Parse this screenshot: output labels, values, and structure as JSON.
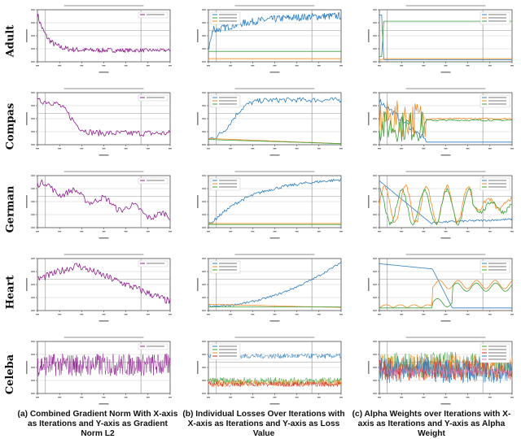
{
  "row_labels": [
    "Adult",
    "Compas",
    "German",
    "Heart",
    "Celeba"
  ],
  "captions": [
    "(a) Combined Gradient Norm With X-axis as Iterations and Y-axis as Gradient Norm L2",
    "(b) Individual Losses Over Iterations with X-axis as Iterations and Y-axis as Loss Value",
    "(c) Alpha Weights over Iterations with X-axis as Iterations and Y-axis as Alpha Weight"
  ],
  "colors": {
    "purple": "#8e1f8e",
    "blue": "#2f7fc1",
    "orange": "#f08a24",
    "green": "#3aa03a",
    "pink": "#e06bb0",
    "red": "#d62728",
    "grid": "#cfcfcf",
    "vline": "#8a8a8a"
  },
  "chart_data": [
    {
      "row": "Adult",
      "column": "a",
      "type": "line",
      "shape": "decay_fast",
      "series": [
        {
          "color": "purple"
        }
      ]
    },
    {
      "row": "Adult",
      "column": "b",
      "type": "line",
      "shape": "adult_losses",
      "series": [
        {
          "color": "blue"
        },
        {
          "color": "green"
        },
        {
          "color": "orange"
        }
      ]
    },
    {
      "row": "Adult",
      "column": "c",
      "type": "line",
      "shape": "adult_alpha",
      "series": [
        {
          "color": "blue"
        },
        {
          "color": "orange"
        },
        {
          "color": "green"
        }
      ]
    },
    {
      "row": "Compas",
      "column": "a",
      "type": "line",
      "shape": "sigmoid_drop",
      "series": [
        {
          "color": "purple"
        }
      ]
    },
    {
      "row": "Compas",
      "column": "b",
      "type": "line",
      "shape": "compas_losses",
      "series": [
        {
          "color": "blue"
        },
        {
          "color": "orange"
        },
        {
          "color": "green"
        }
      ]
    },
    {
      "row": "Compas",
      "column": "c",
      "type": "line",
      "shape": "compas_alpha",
      "series": [
        {
          "color": "blue"
        },
        {
          "color": "orange"
        },
        {
          "color": "green"
        }
      ]
    },
    {
      "row": "German",
      "column": "a",
      "type": "line",
      "shape": "linear_decline",
      "series": [
        {
          "color": "purple"
        }
      ]
    },
    {
      "row": "German",
      "column": "b",
      "type": "line",
      "shape": "german_losses",
      "series": [
        {
          "color": "blue"
        },
        {
          "color": "orange"
        },
        {
          "color": "green"
        }
      ]
    },
    {
      "row": "German",
      "column": "c",
      "type": "line",
      "shape": "german_alpha",
      "series": [
        {
          "color": "blue"
        },
        {
          "color": "orange"
        },
        {
          "color": "green"
        }
      ]
    },
    {
      "row": "Heart",
      "column": "a",
      "type": "line",
      "shape": "peak_decline",
      "series": [
        {
          "color": "purple"
        }
      ]
    },
    {
      "row": "Heart",
      "column": "b",
      "type": "line",
      "shape": "heart_losses",
      "series": [
        {
          "color": "blue"
        },
        {
          "color": "orange"
        },
        {
          "color": "green"
        }
      ]
    },
    {
      "row": "Heart",
      "column": "c",
      "type": "line",
      "shape": "heart_alpha",
      "series": [
        {
          "color": "blue"
        },
        {
          "color": "orange"
        },
        {
          "color": "green"
        }
      ]
    },
    {
      "row": "Celeba",
      "column": "a",
      "type": "line",
      "shape": "dense_noise",
      "series": [
        {
          "color": "purple"
        }
      ]
    },
    {
      "row": "Celeba",
      "column": "b",
      "type": "line",
      "shape": "celeba_losses",
      "series": [
        {
          "color": "blue"
        },
        {
          "color": "green"
        },
        {
          "color": "orange"
        },
        {
          "color": "red"
        }
      ]
    },
    {
      "row": "Celeba",
      "column": "c",
      "type": "line",
      "shape": "celeba_alpha",
      "series": [
        {
          "color": "green"
        },
        {
          "color": "orange"
        },
        {
          "color": "red"
        },
        {
          "color": "blue"
        },
        {
          "color": "pink"
        }
      ]
    }
  ]
}
